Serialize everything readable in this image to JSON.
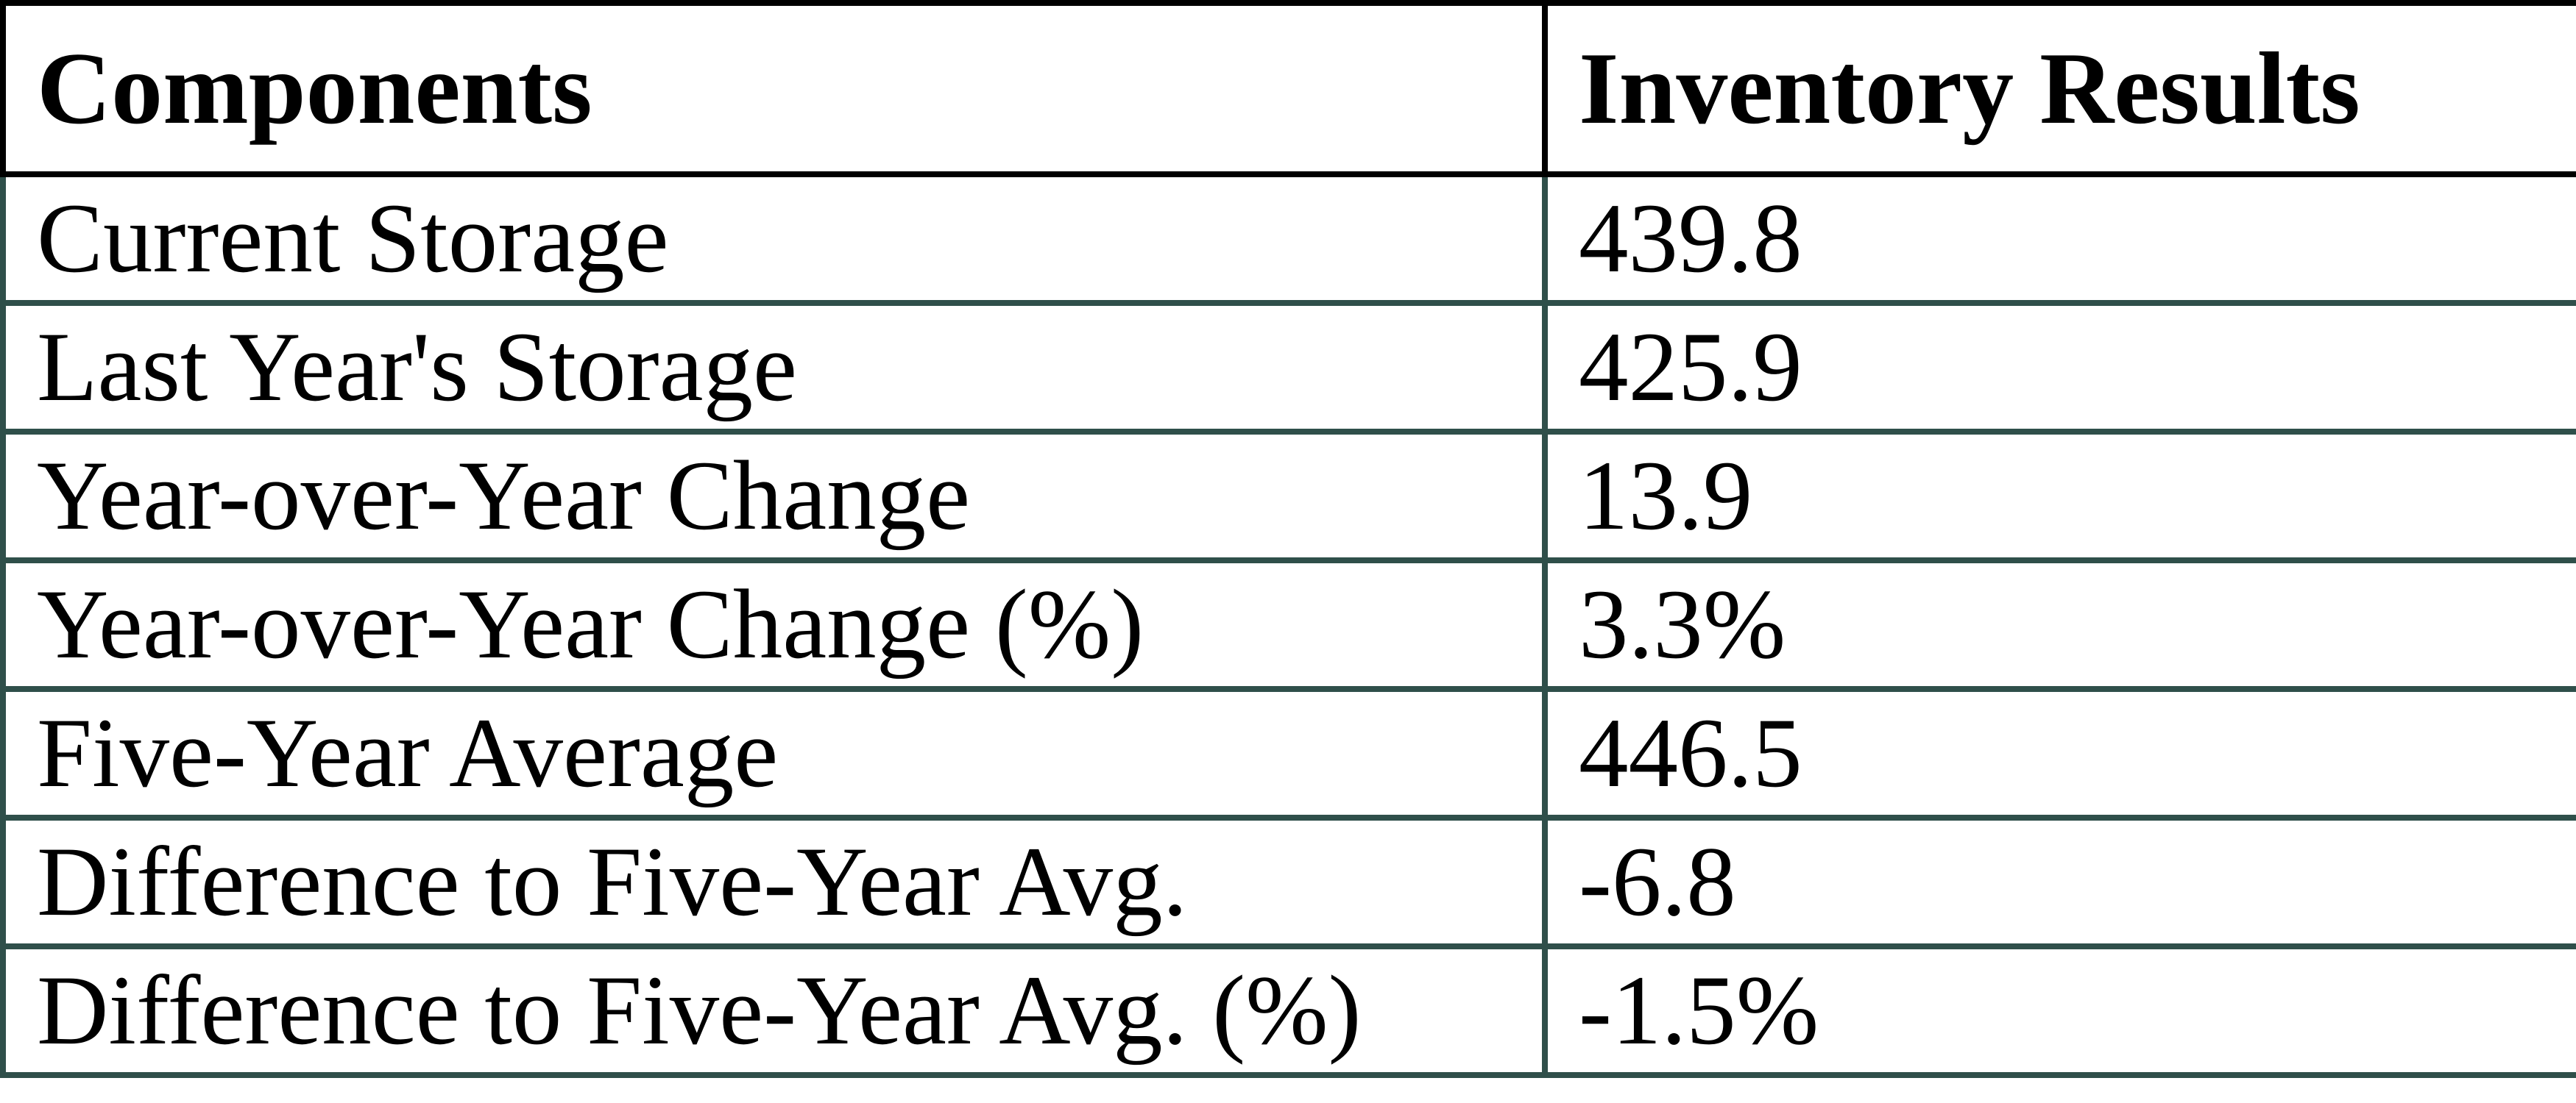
{
  "page": {
    "background_color": "#ffffff",
    "text_color": "#000000"
  },
  "table": {
    "title": "inventory-results-table",
    "style": {
      "header_border_color": "#000000",
      "body_border_color": "#2F4F4A"
    },
    "columns": [
      {
        "label": "Components"
      },
      {
        "label": "Inventory Results"
      }
    ],
    "rows": [
      {
        "label": "Current Storage",
        "value": "439.8"
      },
      {
        "label": "Last Year's Storage",
        "value": "425.9"
      },
      {
        "label": "Year-over-Year Change",
        "value": "13.9"
      },
      {
        "label": "Year-over-Year Change (%)",
        "value": "3.3%"
      },
      {
        "label": "Five-Year Average",
        "value": "446.5"
      },
      {
        "label": "Difference to Five-Year Avg.",
        "value": "-6.8"
      },
      {
        "label": "Difference to Five-Year Avg. (%)",
        "value": "-1.5%"
      }
    ]
  }
}
